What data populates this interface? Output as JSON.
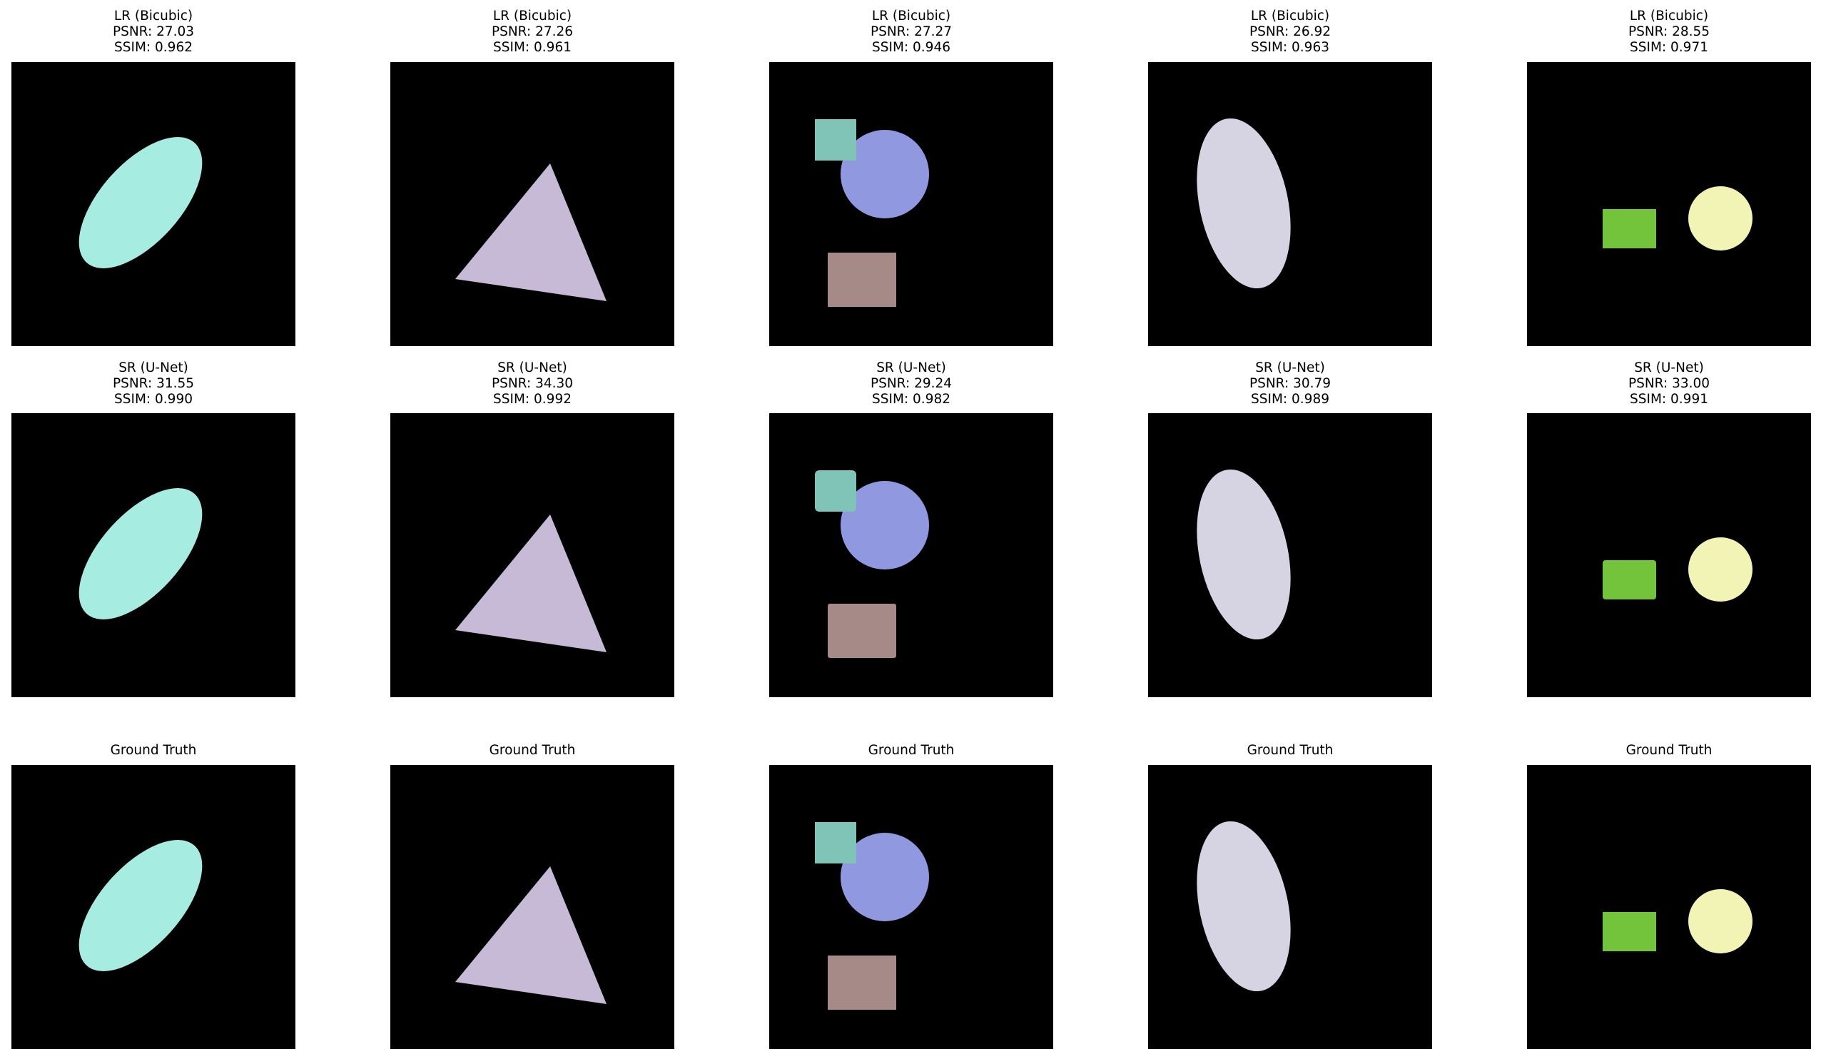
{
  "figure": {
    "rows": [
      {
        "kind": "lr",
        "panels": [
          {
            "label": "LR (Bicubic)",
            "psnr": "PSNR: 27.03",
            "ssim": "SSIM: 0.962"
          },
          {
            "label": "LR (Bicubic)",
            "psnr": "PSNR: 27.26",
            "ssim": "SSIM: 0.961"
          },
          {
            "label": "LR (Bicubic)",
            "psnr": "PSNR: 27.27",
            "ssim": "SSIM: 0.946"
          },
          {
            "label": "LR (Bicubic)",
            "psnr": "PSNR: 26.92",
            "ssim": "SSIM: 0.963"
          },
          {
            "label": "LR (Bicubic)",
            "psnr": "PSNR: 28.55",
            "ssim": "SSIM: 0.971"
          }
        ]
      },
      {
        "kind": "sr",
        "panels": [
          {
            "label": "SR (U-Net)",
            "psnr": "PSNR: 31.55",
            "ssim": "SSIM: 0.990"
          },
          {
            "label": "SR (U-Net)",
            "psnr": "PSNR: 34.30",
            "ssim": "SSIM: 0.992"
          },
          {
            "label": "SR (U-Net)",
            "psnr": "PSNR: 29.24",
            "ssim": "SSIM: 0.982"
          },
          {
            "label": "SR (U-Net)",
            "psnr": "PSNR: 30.79",
            "ssim": "SSIM: 0.989"
          },
          {
            "label": "SR (U-Net)",
            "psnr": "PSNR: 33.00",
            "ssim": "SSIM: 0.991"
          }
        ]
      },
      {
        "kind": "gt",
        "panels": [
          {
            "label": "Ground Truth"
          },
          {
            "label": "Ground Truth"
          },
          {
            "label": "Ground Truth"
          },
          {
            "label": "Ground Truth"
          },
          {
            "label": "Ground Truth"
          }
        ]
      }
    ]
  },
  "colors": {
    "background": "#000000",
    "mint": "#a7ece0",
    "lavender": "#c6bad6",
    "teal_square": "#7fc4b6",
    "periwinkle_circle": "#9099df",
    "mauve_rect": "#a68a88",
    "lilac_ellipse": "#d6d3e3",
    "green_rect": "#73c43a",
    "pale_yellow_circle": "#f1f4b4"
  },
  "scenes": [
    {
      "shapes": [
        {
          "type": "ellipse",
          "color": "mint"
        }
      ]
    },
    {
      "shapes": [
        {
          "type": "triangle",
          "color": "lavender"
        }
      ]
    },
    {
      "shapes": [
        {
          "type": "square",
          "color": "teal_square"
        },
        {
          "type": "circle",
          "color": "periwinkle_circle"
        },
        {
          "type": "rectangle",
          "color": "mauve_rect"
        }
      ]
    },
    {
      "shapes": [
        {
          "type": "ellipse",
          "color": "lilac_ellipse"
        }
      ]
    },
    {
      "shapes": [
        {
          "type": "rectangle",
          "color": "green_rect"
        },
        {
          "type": "circle",
          "color": "pale_yellow_circle"
        }
      ]
    }
  ]
}
